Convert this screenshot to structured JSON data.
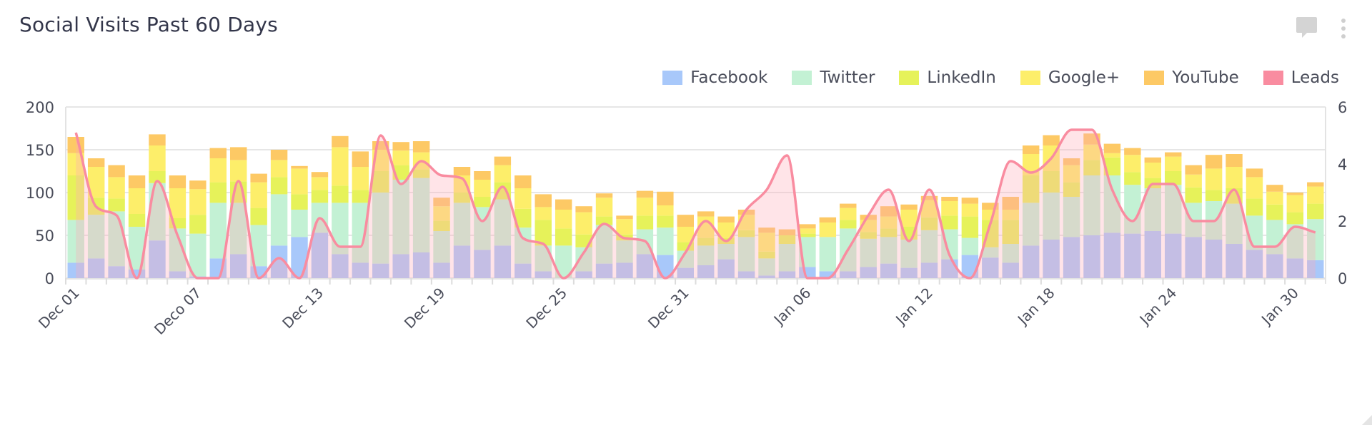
{
  "widget": {
    "title": "Social Visits Past 60 Days",
    "icons": [
      "comment-icon",
      "kebab-menu-icon"
    ]
  },
  "legend": [
    {
      "name": "Facebook",
      "color": "#a8c8fa"
    },
    {
      "name": "Twitter",
      "color": "#c3f1d4"
    },
    {
      "name": "LinkedIn",
      "color": "#e6f25a"
    },
    {
      "name": "Google+",
      "color": "#fdee6a"
    },
    {
      "name": "YouTube",
      "color": "#fdc965"
    },
    {
      "name": "Leads",
      "color": "#f98ca0"
    }
  ],
  "axes": {
    "left_ticks": [
      "0",
      "50",
      "100",
      "150",
      "200"
    ],
    "right_ticks": [
      "0",
      "2",
      "4",
      "6"
    ],
    "x_labels": [
      {
        "index": 0,
        "label": "Dec 01"
      },
      {
        "index": 6,
        "label": "Deco 07"
      },
      {
        "index": 12,
        "label": "Dec 13"
      },
      {
        "index": 18,
        "label": "Dec 19"
      },
      {
        "index": 24,
        "label": "Dec 25"
      },
      {
        "index": 30,
        "label": "Dec 31"
      },
      {
        "index": 36,
        "label": "Jan 06"
      },
      {
        "index": 42,
        "label": "Jan 12"
      },
      {
        "index": 48,
        "label": "Jan 18"
      },
      {
        "index": 54,
        "label": "Jan 24"
      },
      {
        "index": 60,
        "label": "Jan 30"
      }
    ]
  },
  "chart_data": {
    "type": "bar",
    "subtype": "stacked bar + smoothed area line (secondary axis)",
    "title": "Social Visits Past 60 Days",
    "xlabel": "",
    "ylabel": "",
    "ylim": [
      0,
      200
    ],
    "y2lim": [
      0,
      6
    ],
    "grid": true,
    "legend_position": "top-right",
    "categories": [
      "Dec 01",
      "Dec 02",
      "Dec 03",
      "Dec 04",
      "Dec 05",
      "Dec 06",
      "Dec 07",
      "Dec 08",
      "Dec 09",
      "Dec 10",
      "Dec 11",
      "Dec 12",
      "Dec 13",
      "Dec 14",
      "Dec 15",
      "Dec 16",
      "Dec 17",
      "Dec 18",
      "Dec 19",
      "Dec 20",
      "Dec 21",
      "Dec 22",
      "Dec 23",
      "Dec 24",
      "Dec 25",
      "Dec 26",
      "Dec 27",
      "Dec 28",
      "Dec 29",
      "Dec 30",
      "Dec 31",
      "Jan 01",
      "Jan 02",
      "Jan 03",
      "Jan 04",
      "Jan 05",
      "Jan 06",
      "Jan 07",
      "Jan 08",
      "Jan 09",
      "Jan 10",
      "Jan 11",
      "Jan 12",
      "Jan 13",
      "Jan 14",
      "Jan 15",
      "Jan 16",
      "Jan 17",
      "Jan 18",
      "Jan 19",
      "Jan 20",
      "Jan 21",
      "Jan 22",
      "Jan 23",
      "Jan 24",
      "Jan 25",
      "Jan 26",
      "Jan 27",
      "Jan 28",
      "Jan 29",
      "Jan 30",
      "Jan 31"
    ],
    "tick_labels": [
      "Dec 01",
      "Deco 07",
      "Dec 13",
      "Dec 19",
      "Dec 25",
      "Dec 31",
      "Jan 06",
      "Jan 12",
      "Jan 18",
      "Jan 24",
      "Jan 30"
    ],
    "series": [
      {
        "name": "Facebook",
        "axis": "left",
        "type": "bar",
        "values": [
          18,
          23,
          14,
          10,
          44,
          8,
          2,
          23,
          28,
          14,
          38,
          48,
          53,
          28,
          18,
          17,
          28,
          30,
          18,
          38,
          33,
          38,
          17,
          8,
          0,
          8,
          17,
          18,
          28,
          27,
          12,
          15,
          22,
          8,
          3,
          8,
          13,
          8,
          8,
          13,
          17,
          12,
          18,
          22,
          27,
          24,
          18,
          38,
          45,
          48,
          50,
          53,
          52,
          55,
          52,
          48,
          45,
          40,
          33,
          28,
          23,
          21
        ]
      },
      {
        "name": "Twitter",
        "axis": "left",
        "type": "bar",
        "values": [
          50,
          51,
          64,
          50,
          67,
          50,
          50,
          65,
          60,
          48,
          60,
          32,
          35,
          60,
          70,
          83,
          87,
          87,
          37,
          50,
          50,
          54,
          42,
          30,
          38,
          28,
          45,
          26,
          29,
          32,
          20,
          23,
          18,
          40,
          20,
          32,
          35,
          40,
          50,
          33,
          31,
          33,
          38,
          35,
          20,
          12,
          22,
          50,
          55,
          47,
          70,
          67,
          57,
          50,
          57,
          40,
          45,
          47,
          40,
          40,
          40,
          48
        ]
      },
      {
        "name": "LinkedIn",
        "axis": "left",
        "type": "bar",
        "values": [
          52,
          20,
          15,
          15,
          14,
          12,
          22,
          24,
          25,
          20,
          20,
          18,
          15,
          20,
          15,
          25,
          17,
          10,
          12,
          12,
          12,
          20,
          22,
          30,
          20,
          15,
          10,
          7,
          16,
          14,
          10,
          9,
          7,
          8,
          8,
          10,
          4,
          0,
          10,
          8,
          10,
          15,
          15,
          16,
          25,
          32,
          28,
          32,
          25,
          17,
          18,
          21,
          15,
          12,
          16,
          18,
          13,
          18,
          20,
          18,
          14,
          18
        ]
      },
      {
        "name": "Google+",
        "axis": "left",
        "type": "bar",
        "values": [
          26,
          36,
          25,
          30,
          30,
          35,
          30,
          28,
          25,
          30,
          20,
          30,
          15,
          45,
          27,
          25,
          17,
          20,
          17,
          20,
          20,
          20,
          24,
          15,
          22,
          26,
          22,
          18,
          21,
          12,
          18,
          25,
          18,
          18,
          22,
          0,
          6,
          17,
          14,
          14,
          14,
          20,
          20,
          17,
          15,
          12,
          12,
          25,
          30,
          20,
          18,
          5,
          20,
          18,
          17,
          15,
          25,
          25,
          25,
          15,
          20,
          20
        ]
      },
      {
        "name": "YouTube",
        "axis": "left",
        "type": "bar",
        "values": [
          19,
          10,
          14,
          15,
          13,
          15,
          10,
          12,
          15,
          10,
          12,
          3,
          6,
          13,
          18,
          10,
          10,
          13,
          10,
          10,
          10,
          10,
          15,
          15,
          12,
          7,
          5,
          4,
          8,
          16,
          14,
          6,
          7,
          6,
          6,
          7,
          5,
          6,
          5,
          6,
          12,
          6,
          5,
          5,
          7,
          8,
          15,
          10,
          12,
          8,
          13,
          11,
          8,
          6,
          5,
          11,
          16,
          15,
          10,
          8,
          3,
          5
        ]
      },
      {
        "name": "Leads",
        "axis": "right",
        "type": "area-spline",
        "values": [
          5.1,
          2.5,
          2.2,
          0.0,
          3.4,
          1.5,
          0.0,
          0.0,
          3.4,
          0.0,
          0.7,
          0.0,
          2.1,
          1.1,
          1.1,
          5.0,
          3.3,
          4.1,
          3.6,
          3.5,
          2.0,
          3.2,
          1.4,
          1.2,
          0.0,
          0.9,
          1.9,
          1.4,
          1.3,
          0.0,
          0.9,
          2.0,
          1.3,
          2.4,
          3.1,
          4.3,
          0.0,
          0.0,
          1.0,
          2.2,
          3.1,
          1.3,
          3.1,
          0.8,
          0.0,
          1.9,
          4.1,
          3.7,
          4.2,
          5.2,
          5.2,
          3.1,
          2.0,
          3.3,
          3.3,
          2.0,
          2.0,
          3.1,
          1.1,
          1.1,
          1.8,
          1.6
        ]
      }
    ]
  }
}
